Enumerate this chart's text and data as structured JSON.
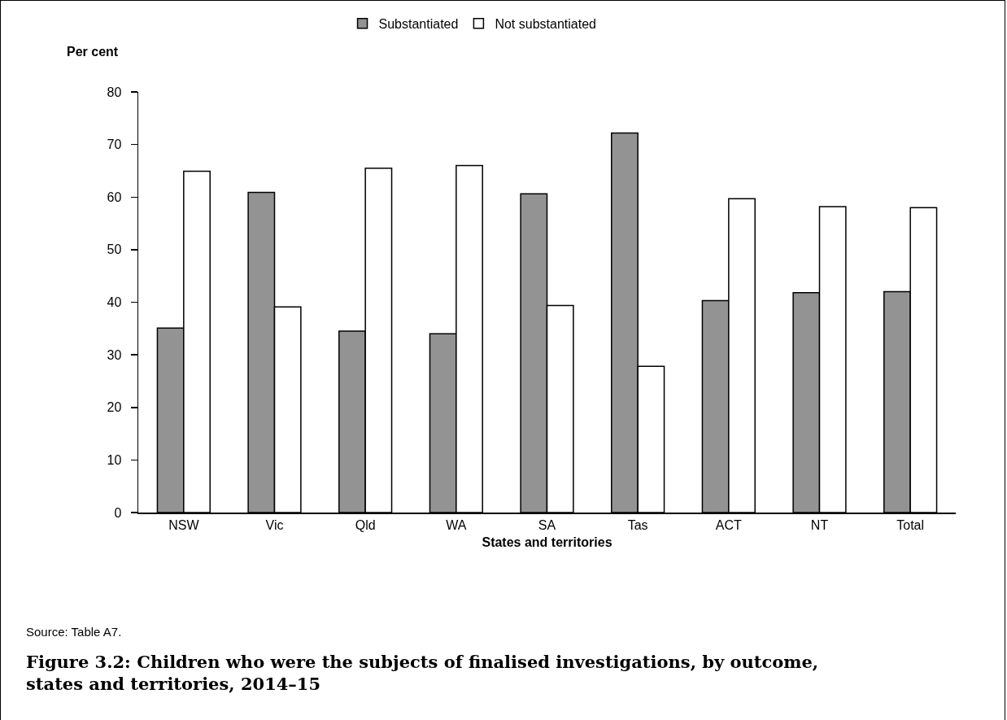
{
  "chart_data": {
    "type": "bar",
    "title": "Figure 3.2: Children who were the subjects of finalised investigations, by outcome, states and territories, 2014–15",
    "xlabel": "States and territories",
    "ylabel": "Per cent",
    "annotations": [
      "Source: Table A7."
    ],
    "categories": [
      "NSW",
      "Vic",
      "Qld",
      "WA",
      "SA",
      "Tas",
      "ACT",
      "NT",
      "Total"
    ],
    "series": [
      {
        "name": "Substantiated",
        "color": "#939393",
        "values": [
          35.1,
          60.9,
          34.5,
          34.0,
          60.6,
          72.2,
          40.3,
          41.8,
          42.0
        ]
      },
      {
        "name": "Not substantiated",
        "color": "#ffffff",
        "values": [
          64.9,
          39.1,
          65.5,
          66.0,
          39.4,
          27.8,
          59.7,
          58.2,
          58.0
        ]
      }
    ],
    "ylim": [
      0,
      80
    ],
    "yticks": [
      0,
      10,
      20,
      30,
      40,
      50,
      60,
      70,
      80
    ],
    "grid": false,
    "legend": "top"
  }
}
